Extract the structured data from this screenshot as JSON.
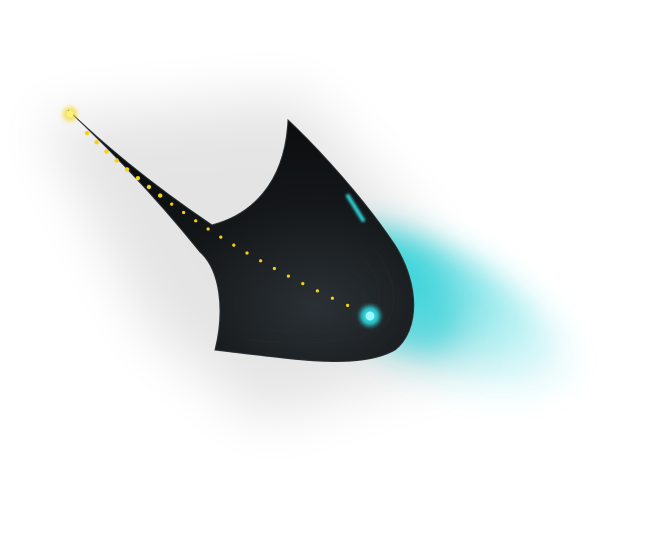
{
  "graphic": {
    "icon": "dart-arrow-icon",
    "colors": {
      "background": "#ffffff",
      "body": "#141719",
      "body_edge": "#2a3035",
      "glow": "#2fd3da",
      "light_core": "#9ff6ff",
      "trail": "#f5d20f",
      "tip_flare": "#fff27a"
    }
  }
}
